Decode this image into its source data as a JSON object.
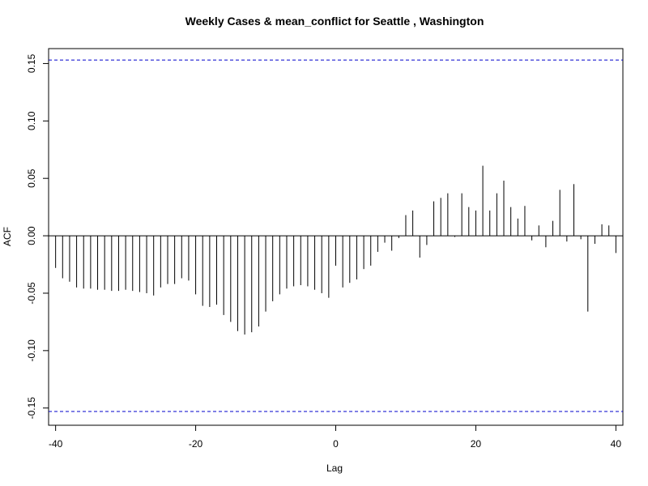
{
  "chart_data": {
    "type": "bar",
    "title": "Weekly Cases & mean_conflict for Seattle , Washington",
    "xlabel": "Lag",
    "ylabel": "ACF",
    "xlim": [
      -41,
      41
    ],
    "ylim": [
      -0.165,
      0.163
    ],
    "x_ticks": [
      -40,
      -20,
      0,
      20,
      40
    ],
    "x_tick_labels": [
      "-40",
      "-20",
      "0",
      "20",
      "40"
    ],
    "y_ticks": [
      -0.15,
      -0.1,
      -0.05,
      0.0,
      0.05,
      0.1,
      0.15
    ],
    "y_tick_labels": [
      "-0.15",
      "-0.10",
      "-0.05",
      "0.00",
      "0.05",
      "0.10",
      "0.15"
    ],
    "grid": false,
    "confidence_bound": 0.153,
    "bound_color": "#0000cc",
    "bar_color": "#000000",
    "lags": [
      -40,
      -39,
      -38,
      -37,
      -36,
      -35,
      -34,
      -33,
      -32,
      -31,
      -30,
      -29,
      -28,
      -27,
      -26,
      -25,
      -24,
      -23,
      -22,
      -21,
      -20,
      -19,
      -18,
      -17,
      -16,
      -15,
      -14,
      -13,
      -12,
      -11,
      -10,
      -9,
      -8,
      -7,
      -6,
      -5,
      -4,
      -3,
      -2,
      -1,
      0,
      1,
      2,
      3,
      4,
      5,
      6,
      7,
      8,
      9,
      10,
      11,
      12,
      13,
      14,
      15,
      16,
      17,
      18,
      19,
      20,
      21,
      22,
      23,
      24,
      25,
      26,
      27,
      28,
      29,
      30,
      31,
      32,
      33,
      34,
      35,
      36,
      37,
      38,
      39,
      40
    ],
    "values": [
      -0.028,
      -0.037,
      -0.04,
      -0.045,
      -0.046,
      -0.046,
      -0.047,
      -0.047,
      -0.048,
      -0.048,
      -0.047,
      -0.048,
      -0.049,
      -0.05,
      -0.052,
      -0.045,
      -0.042,
      -0.042,
      -0.037,
      -0.039,
      -0.051,
      -0.061,
      -0.062,
      -0.06,
      -0.069,
      -0.075,
      -0.083,
      -0.086,
      -0.084,
      -0.079,
      -0.066,
      -0.057,
      -0.051,
      -0.046,
      -0.044,
      -0.043,
      -0.044,
      -0.047,
      -0.05,
      -0.054,
      -0.026,
      -0.045,
      -0.041,
      -0.038,
      -0.029,
      -0.026,
      -0.014,
      -0.006,
      -0.013,
      -0.002,
      0.018,
      0.022,
      -0.019,
      -0.008,
      0.03,
      0.033,
      0.037,
      -0.001,
      0.037,
      0.025,
      0.022,
      0.061,
      0.022,
      0.037,
      0.048,
      0.025,
      0.015,
      0.026,
      -0.004,
      0.009,
      -0.01,
      0.013,
      0.04,
      -0.005,
      0.045,
      -0.003,
      -0.066,
      -0.007,
      0.01,
      0.009,
      -0.015
    ]
  }
}
